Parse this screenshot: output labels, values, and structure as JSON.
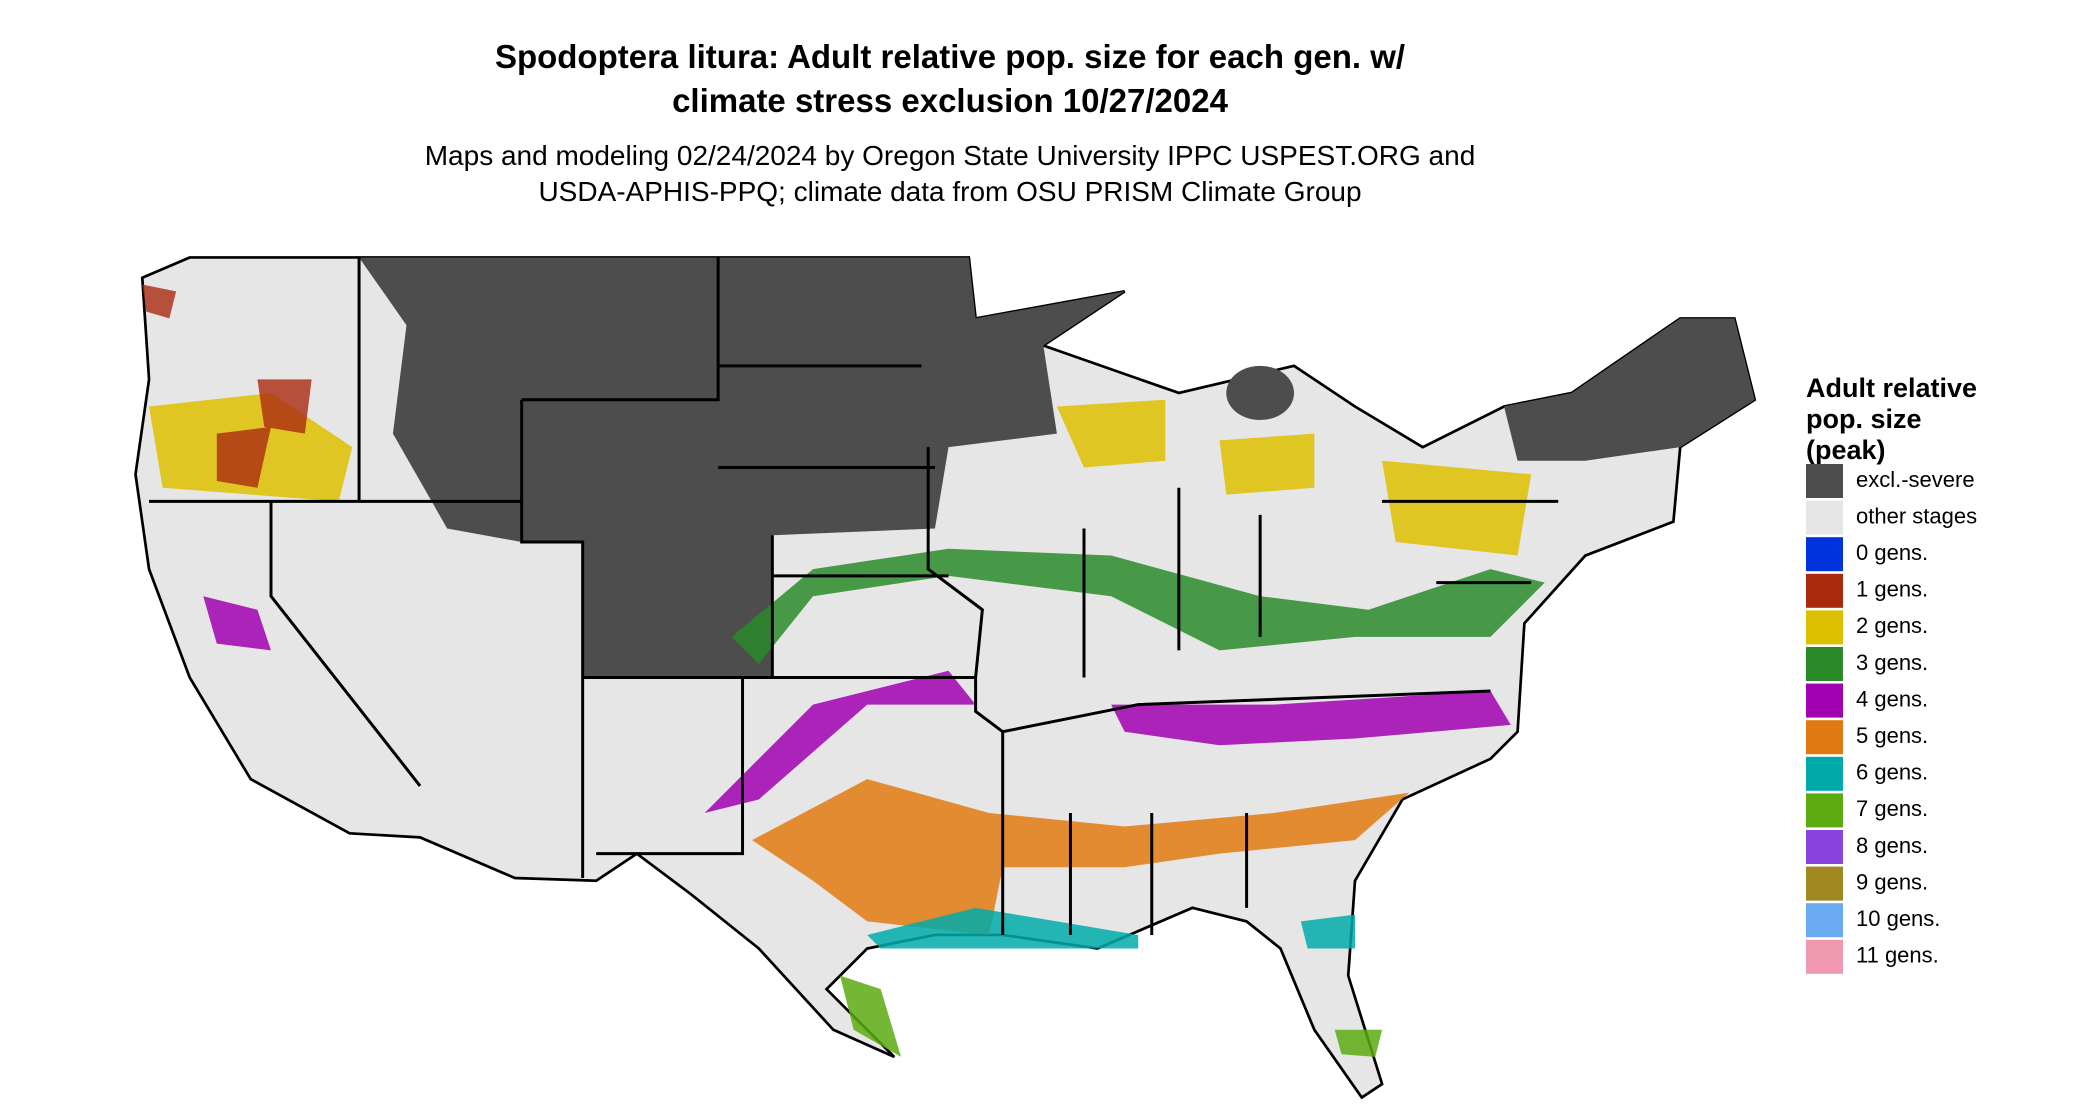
{
  "title": [
    "Spodoptera litura: Adult relative pop. size for each gen. w/",
    "climate stress exclusion 10/27/2024"
  ],
  "subtitle": [
    "Maps and modeling 02/24/2024 by Oregon State University IPPC USPEST.ORG and",
    "USDA-APHIS-PPQ; climate data from OSU PRISM Climate Group"
  ],
  "legend": {
    "title": [
      "Adult relative",
      "pop. size",
      "(peak)"
    ],
    "items": [
      {
        "label": "excl.-severe",
        "color": "#4d4d4d"
      },
      {
        "label": "other stages",
        "color": "#e6e6e6"
      },
      {
        "label": "0 gens.",
        "color": "#0033dd"
      },
      {
        "label": "1 gens.",
        "color": "#aa2a10"
      },
      {
        "label": "2 gens.",
        "color": "#ddc000"
      },
      {
        "label": "3 gens.",
        "color": "#2a8a2a"
      },
      {
        "label": "4 gens.",
        "color": "#a000b0"
      },
      {
        "label": "5 gens.",
        "color": "#e07a10"
      },
      {
        "label": "6 gens.",
        "color": "#00aaaa"
      },
      {
        "label": "7 gens.",
        "color": "#5aaa10"
      },
      {
        "label": "8 gens.",
        "color": "#8844dd"
      },
      {
        "label": "9 gens.",
        "color": "#a08820"
      },
      {
        "label": "10 gens.",
        "color": "#6aaaf0"
      },
      {
        "label": "11 gens.",
        "color": "#f099b0"
      }
    ]
  }
}
